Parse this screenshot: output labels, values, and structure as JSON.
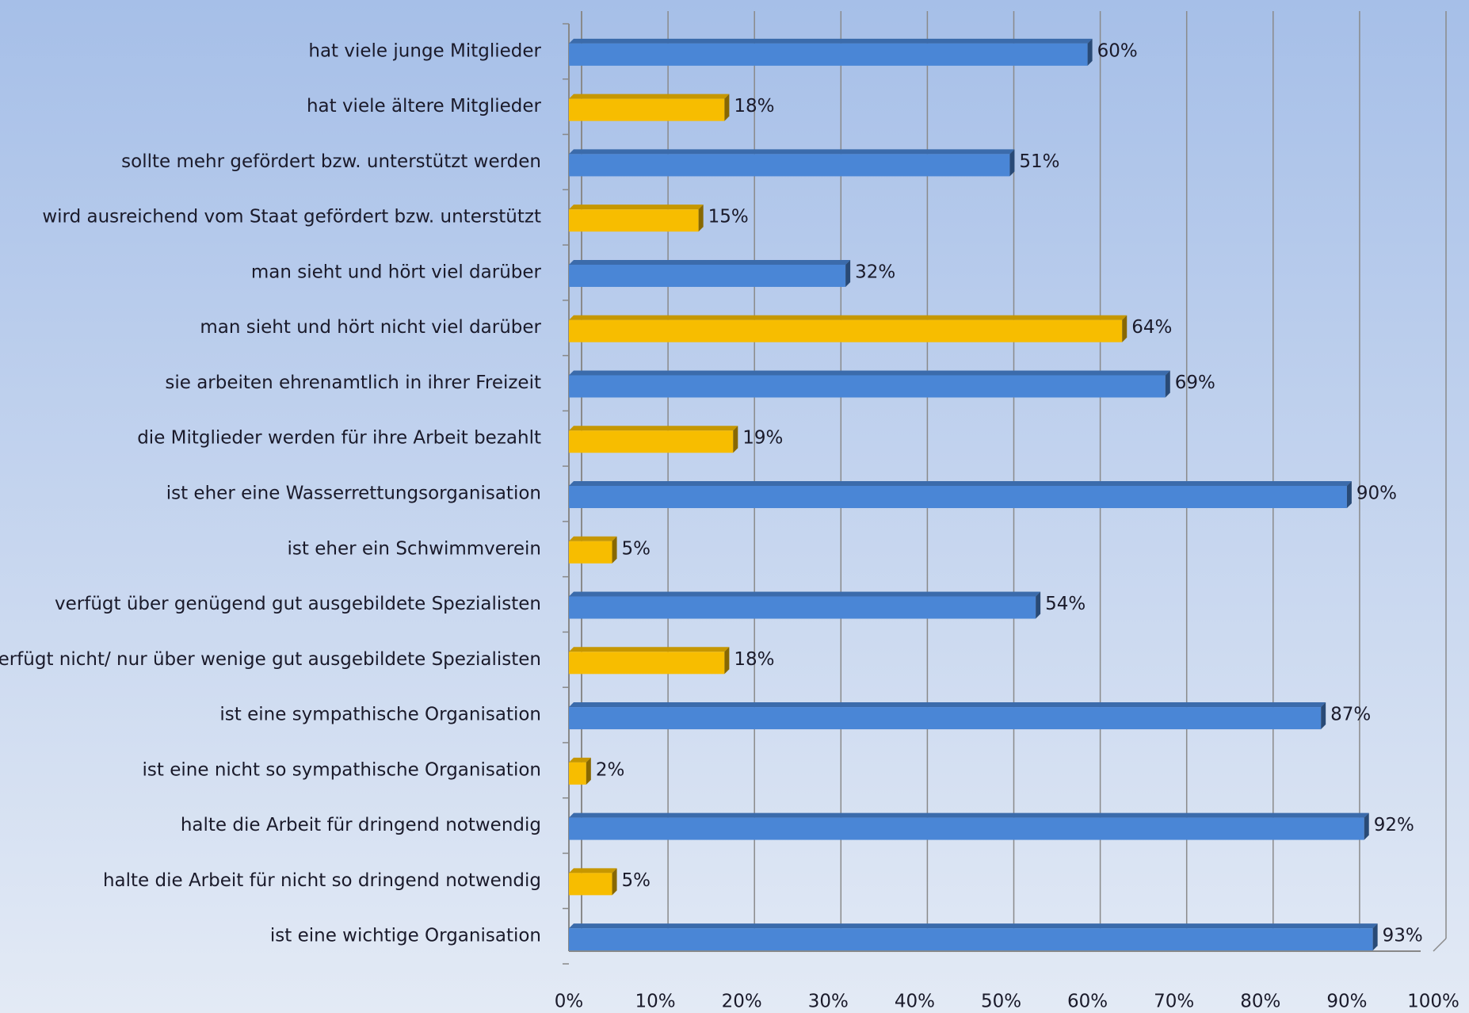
{
  "chart_data": {
    "type": "bar",
    "orientation": "horizontal",
    "categories": [
      "hat viele junge Mitglieder",
      "hat viele ältere Mitglieder",
      "sollte mehr gefördert bzw. unterstützt werden",
      "wird ausreichend vom Staat gefördert bzw. unterstützt",
      "man sieht und hört viel darüber",
      "man sieht und hört nicht viel darüber",
      "sie arbeiten ehrenamtlich in ihrer Freizeit",
      "die Mitglieder werden für ihre Arbeit bezahlt",
      "ist eher eine Wasserrettungsorganisation",
      "ist eher ein Schwimmverein",
      "verfügt über genügend gut ausgebildete Spezialisten",
      "verfügt nicht/ nur über wenige gut ausgebildete Spezialisten",
      "ist eine sympathische Organisation",
      "ist eine nicht so sympathische Organisation",
      "halte die Arbeit für dringend notwendig",
      "halte die Arbeit für nicht so dringend notwendig",
      "ist eine wichtige Organisation"
    ],
    "values": [
      60,
      18,
      51,
      15,
      32,
      64,
      69,
      19,
      90,
      5,
      54,
      18,
      87,
      2,
      92,
      5,
      93
    ],
    "value_labels": [
      "60%",
      "18%",
      "51%",
      "15%",
      "32%",
      "64%",
      "69%",
      "19%",
      "90%",
      "5%",
      "54%",
      "18%",
      "87%",
      "2%",
      "92%",
      "5%",
      "93%"
    ],
    "colors": [
      "#4a86d6",
      "#f7bd00",
      "#4a86d6",
      "#f7bd00",
      "#4a86d6",
      "#f7bd00",
      "#4a86d6",
      "#f7bd00",
      "#4a86d6",
      "#f7bd00",
      "#4a86d6",
      "#f7bd00",
      "#4a86d6",
      "#f7bd00",
      "#4a86d6",
      "#f7bd00",
      "#4a86d6"
    ],
    "xlim": [
      0,
      100
    ],
    "xticks": [
      {
        "value": 0,
        "label": "0%"
      },
      {
        "value": 10,
        "label": "10%"
      },
      {
        "value": 20,
        "label": "20%"
      },
      {
        "value": 30,
        "label": "30%"
      },
      {
        "value": 40,
        "label": "40%"
      },
      {
        "value": 50,
        "label": "50%"
      },
      {
        "value": 60,
        "label": "60%"
      },
      {
        "value": 70,
        "label": "70%"
      },
      {
        "value": 80,
        "label": "80%"
      },
      {
        "value": 90,
        "label": "90%"
      },
      {
        "value": 100,
        "label": "100%"
      }
    ],
    "grid": true
  }
}
